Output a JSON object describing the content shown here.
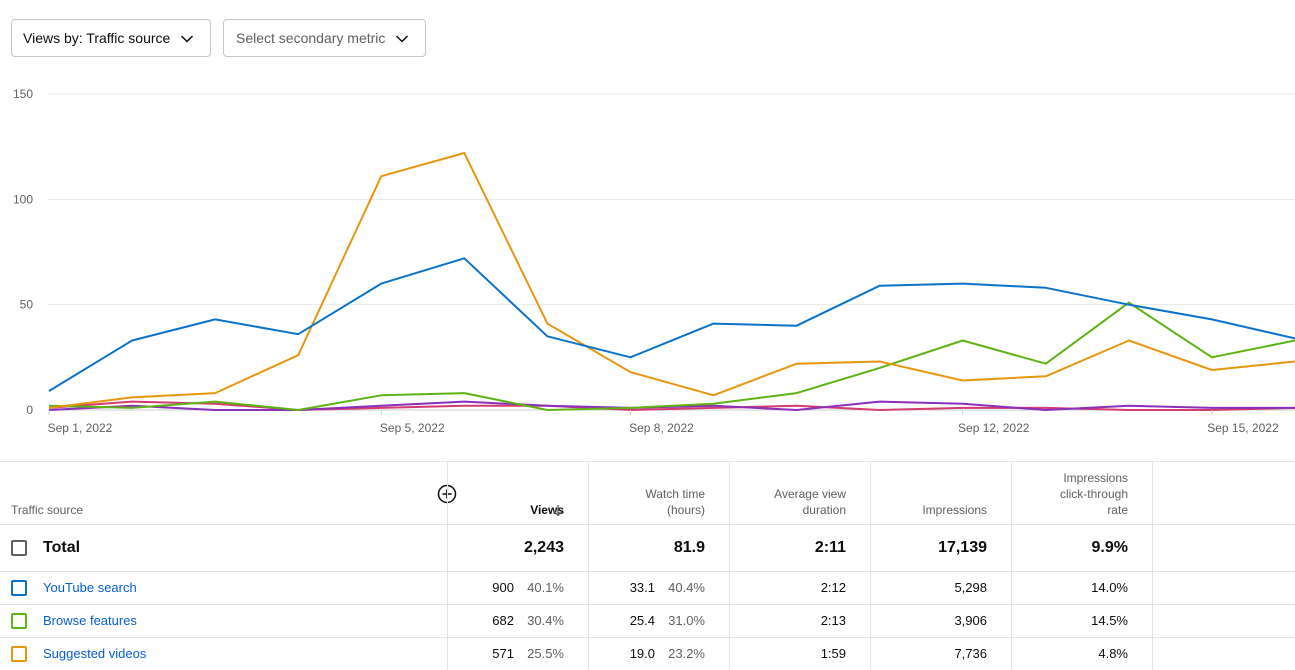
{
  "toolbar": {
    "views_by_label": "Views by: Traffic source",
    "secondary_metric_placeholder": "Select secondary metric"
  },
  "chart_data": {
    "type": "line",
    "x": [
      "Sep 1",
      "Sep 2",
      "Sep 3",
      "Sep 4",
      "Sep 5",
      "Sep 6",
      "Sep 7",
      "Sep 8",
      "Sep 9",
      "Sep 10",
      "Sep 11",
      "Sep 12",
      "Sep 13",
      "Sep 14",
      "Sep 15",
      "Sep 16"
    ],
    "x_tick_labels": [
      {
        "index": 0,
        "label": "Sep 1, 2022"
      },
      {
        "index": 4,
        "label": "Sep 5, 2022"
      },
      {
        "index": 7,
        "label": "Sep 8, 2022"
      },
      {
        "index": 11,
        "label": "Sep 12, 2022"
      },
      {
        "index": 14,
        "label": "Sep 15, 2022"
      }
    ],
    "y_ticks": [
      0,
      50,
      100,
      150
    ],
    "ylim": [
      0,
      150
    ],
    "grid": true,
    "series": [
      {
        "name": "YouTube search",
        "color": "#0a73c9",
        "values": [
          9,
          33,
          43,
          36,
          60,
          72,
          35,
          25,
          41,
          40,
          59,
          60,
          58,
          50,
          43,
          34
        ]
      },
      {
        "name": "Browse features",
        "color": "#5db312",
        "values": [
          2,
          1,
          4,
          0,
          7,
          8,
          0,
          1,
          3,
          8,
          20,
          33,
          22,
          51,
          25,
          33
        ]
      },
      {
        "name": "Suggested videos",
        "color": "#e8960f",
        "values": [
          1,
          6,
          8,
          26,
          111,
          122,
          41,
          18,
          7,
          22,
          23,
          14,
          16,
          33,
          19,
          23
        ]
      },
      {
        "color": "#d23c6e",
        "values": [
          1,
          4,
          3,
          0,
          1,
          2,
          2,
          0,
          1,
          2,
          0,
          1,
          1,
          0,
          0,
          1
        ]
      },
      {
        "color": "#8a2fb9",
        "values": [
          0,
          2,
          0,
          0,
          2,
          4,
          2,
          1,
          2,
          0,
          4,
          3,
          0,
          2,
          1,
          1
        ]
      }
    ]
  },
  "table": {
    "headers": {
      "source": "Traffic source",
      "views": "Views",
      "watch_time_1": "Watch time",
      "watch_time_2": "(hours)",
      "avd_1": "Average view",
      "avd_2": "duration",
      "impressions": "Impressions",
      "ctr_1": "Impressions",
      "ctr_2": "click-through",
      "ctr_3": "rate"
    },
    "total": {
      "label": "Total",
      "views": "2,243",
      "watch_time": "81.9",
      "avd": "2:11",
      "impressions": "17,139",
      "ctr": "9.9%"
    },
    "rows": [
      {
        "label": "YouTube search",
        "color": "#0a73c9",
        "views": "900",
        "views_pct": "40.1%",
        "watch_time": "33.1",
        "watch_pct": "40.4%",
        "avd": "2:12",
        "impressions": "5,298",
        "ctr": "14.0%"
      },
      {
        "label": "Browse features",
        "color": "#5db312",
        "views": "682",
        "views_pct": "30.4%",
        "watch_time": "25.4",
        "watch_pct": "31.0%",
        "avd": "2:13",
        "impressions": "3,906",
        "ctr": "14.5%"
      },
      {
        "label": "Suggested videos",
        "color": "#e8960f",
        "views": "571",
        "views_pct": "25.5%",
        "watch_time": "19.0",
        "watch_pct": "23.2%",
        "avd": "1:59",
        "impressions": "7,736",
        "ctr": "4.8%"
      }
    ]
  },
  "icons": {
    "dropdown": "chevron-down-icon",
    "add_column": "add-circle-icon",
    "sort": "arrow-down-icon"
  }
}
